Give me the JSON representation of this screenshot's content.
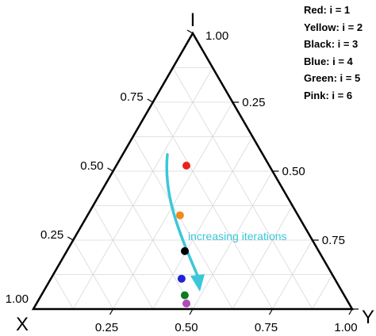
{
  "chart_data": {
    "type": "scatter",
    "ternary": true,
    "corner_labels": {
      "top": "I",
      "left": "X",
      "right": "Y"
    },
    "ticks": {
      "I": [
        "1.00",
        "0.75",
        "0.50",
        "0.25"
      ],
      "X": [
        "0.25",
        "0.50",
        "0.75",
        "1.00"
      ],
      "Y": [
        "0.25",
        "0.50",
        "0.75",
        "1.00"
      ]
    },
    "grid": true,
    "grid_step": 0.125,
    "legend": {
      "placement": "top-right",
      "entries": [
        "Red: i = 1",
        "Yellow: i = 2",
        "Black: i = 3",
        "Blue: i = 4",
        "Green: i = 5",
        "Pink: i = 6"
      ]
    },
    "points": [
      {
        "i": 1,
        "color": "#e8231f",
        "I": 0.52,
        "Y": 0.22,
        "X": 0.26
      },
      {
        "i": 2,
        "color": "#f08a1c",
        "I": 0.34,
        "Y": 0.29,
        "X": 0.37
      },
      {
        "i": 3,
        "color": "#000000",
        "I": 0.21,
        "Y": 0.37,
        "X": 0.42
      },
      {
        "i": 4,
        "color": "#1f22d6",
        "I": 0.11,
        "Y": 0.41,
        "X": 0.48
      },
      {
        "i": 5,
        "color": "#0f7a1f",
        "I": 0.05,
        "Y": 0.45,
        "X": 0.5
      },
      {
        "i": 6,
        "color": "#b04ab8",
        "I": 0.02,
        "Y": 0.47,
        "X": 0.51
      }
    ],
    "annotation": {
      "text": "increasing iterations",
      "color": "#3cc7d9"
    }
  }
}
